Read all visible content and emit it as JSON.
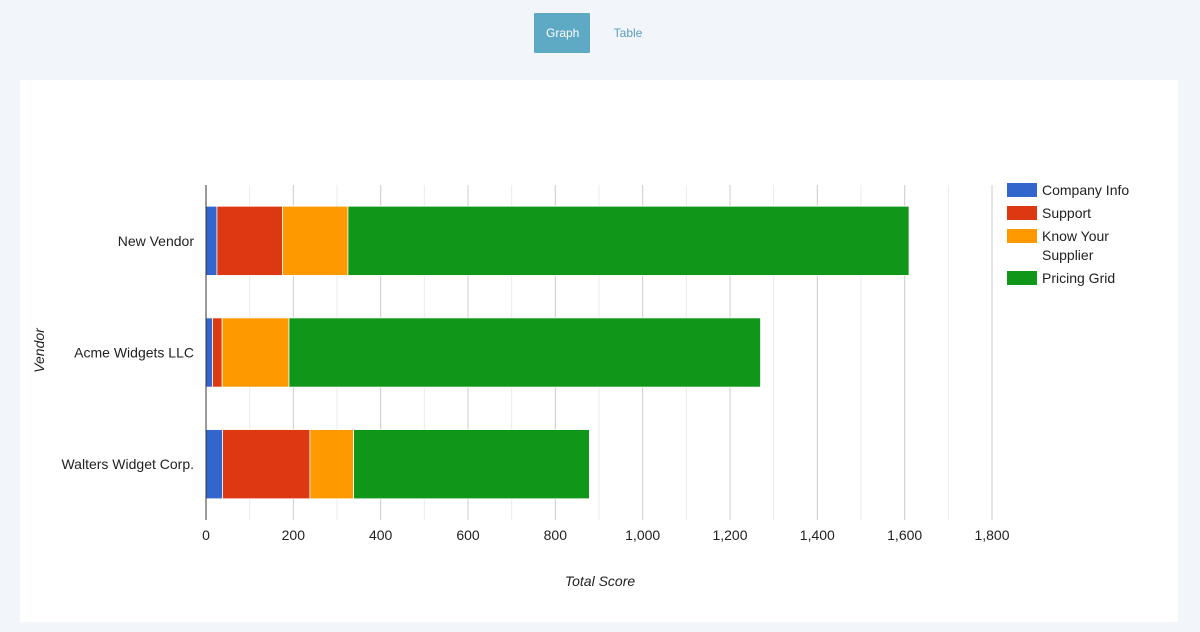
{
  "tabs": {
    "graph": "Graph",
    "table": "Table"
  },
  "chart_data": {
    "type": "bar",
    "orientation": "horizontal",
    "stacked": true,
    "categories": [
      "New Vendor",
      "Acme Widgets LLC",
      "Walters Widget Corp."
    ],
    "series": [
      {
        "name": "Company Info",
        "color": "#3366cc",
        "values": [
          25,
          15,
          38
        ]
      },
      {
        "name": "Support",
        "color": "#dc3912",
        "values": [
          150,
          22,
          200
        ]
      },
      {
        "name": "Know Your Supplier",
        "color": "#ff9900",
        "values": [
          150,
          153,
          100
        ]
      },
      {
        "name": "Pricing Grid",
        "color": "#109618",
        "values": [
          1285,
          1080,
          540
        ]
      }
    ],
    "xlabel": "Total Score",
    "ylabel": "Vendor",
    "xlim": [
      0,
      1800
    ],
    "xticks": [
      0,
      200,
      400,
      600,
      800,
      1000,
      1200,
      1400,
      1600,
      1800
    ],
    "xtick_labels": [
      "0",
      "200",
      "400",
      "600",
      "800",
      "1,000",
      "1,200",
      "1,400",
      "1,600",
      "1,800"
    ],
    "grid": true,
    "legend_position": "right"
  }
}
